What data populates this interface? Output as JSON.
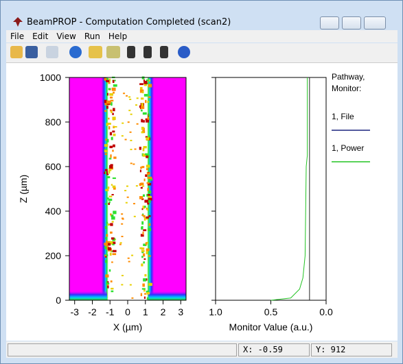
{
  "window": {
    "title": "BeamPROP - Computation Completed (scan2)",
    "menu": [
      "File",
      "Edit",
      "View",
      "Run",
      "Help"
    ],
    "status": [
      "X: -0.59",
      "Y: 912"
    ]
  },
  "chart_data": [
    {
      "type": "contour",
      "xlabel": "X (µm)",
      "ylabel": "Z (µm)",
      "xlim": [
        -3.3,
        3.3
      ],
      "ylim": [
        0,
        1000
      ],
      "xticks": [
        -3,
        -2,
        -1,
        0,
        1,
        2,
        3
      ],
      "yticks": [
        0,
        200,
        400,
        600,
        800,
        1000
      ]
    },
    {
      "type": "line",
      "xlabel": "Monitor Value (a.u.)",
      "xlim": [
        1.0,
        0.0
      ],
      "ylim": [
        0,
        1000
      ],
      "xticks": [
        {
          "value": 1.0,
          "label": "1.0"
        },
        {
          "value": 0.5,
          "label": "0.5"
        },
        {
          "value": 0.0,
          "label": "0.0"
        }
      ],
      "yticks": [
        0,
        200,
        400,
        600,
        800,
        1000
      ],
      "legend_title": [
        "Pathway,",
        "Monitor:"
      ],
      "series": [
        {
          "name": "1, File",
          "color": "#1a237e",
          "z": [
            0,
            1000
          ],
          "values": [
            0.15,
            0.15
          ]
        },
        {
          "name": "1, Power",
          "color": "#22c322",
          "z": [
            0,
            10,
            50,
            100,
            200,
            400,
            600,
            650,
            700,
            1000
          ],
          "values": [
            0.5,
            0.32,
            0.24,
            0.21,
            0.19,
            0.185,
            0.18,
            0.17,
            0.17,
            0.17
          ]
        }
      ]
    }
  ]
}
